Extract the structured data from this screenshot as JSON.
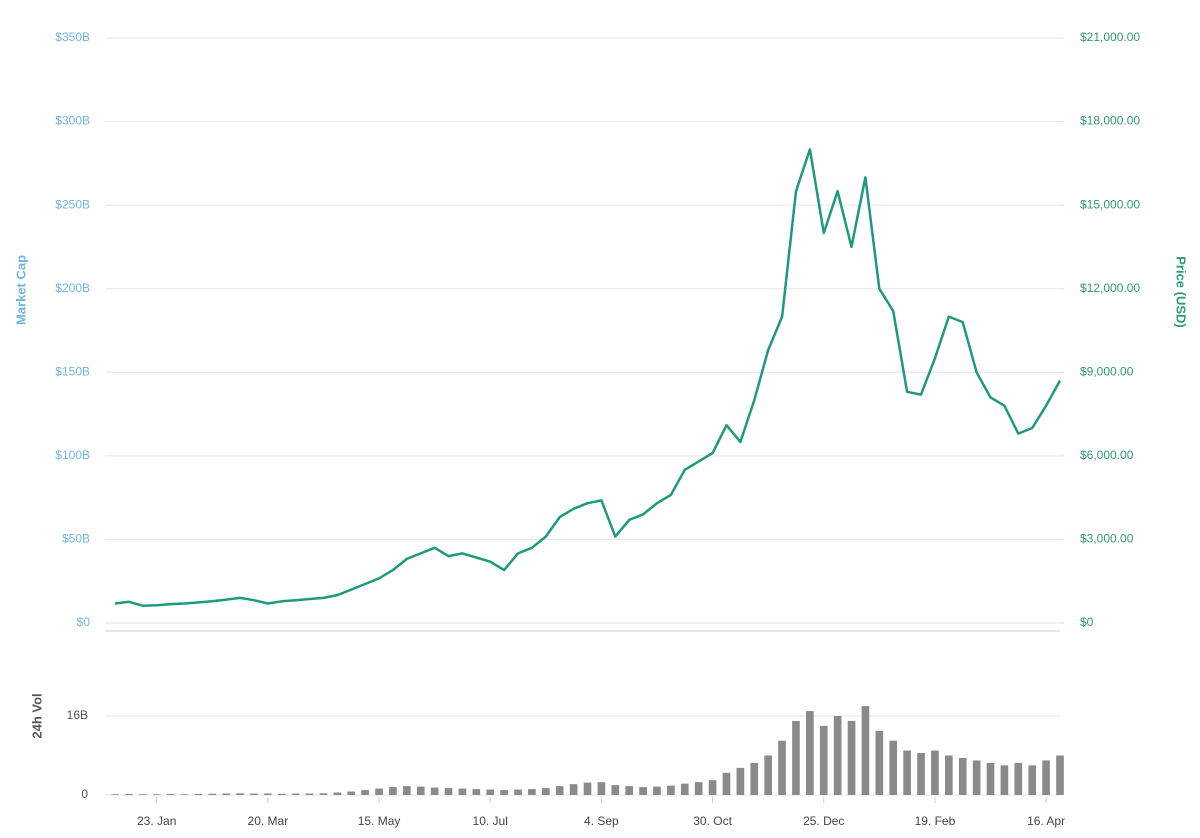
{
  "chart_data": {
    "type": "line",
    "ylabel": "Market Cap",
    "y2label": "Price (USD)",
    "categories": [
      null,
      null,
      null,
      "23. Jan",
      null,
      null,
      null,
      null,
      null,
      null,
      null,
      "20. Mar",
      null,
      null,
      null,
      null,
      null,
      null,
      null,
      "15. May",
      null,
      null,
      null,
      null,
      null,
      null,
      null,
      "10. Jul",
      null,
      null,
      null,
      null,
      null,
      null,
      null,
      "4. Sep",
      null,
      null,
      null,
      null,
      null,
      null,
      null,
      "30. Oct",
      null,
      null,
      null,
      null,
      null,
      null,
      null,
      "25. Dec",
      null,
      null,
      null,
      null,
      null,
      null,
      null,
      "19. Feb",
      null,
      null,
      null,
      null,
      null,
      null,
      null,
      "16. Apr",
      null
    ],
    "ylim": [
      0,
      350000000000
    ],
    "yticks": [
      {
        "value": 0,
        "label": "$0"
      },
      {
        "value": 50000000000,
        "label": "$50B"
      },
      {
        "value": 100000000000,
        "label": "$100B"
      },
      {
        "value": 150000000000,
        "label": "$150B"
      },
      {
        "value": 200000000000,
        "label": "$200B"
      },
      {
        "value": 250000000000,
        "label": "$250B"
      },
      {
        "value": 300000000000,
        "label": "$300B"
      },
      {
        "value": 350000000000,
        "label": "$350B"
      }
    ],
    "y2lim": [
      0,
      21000
    ],
    "y2ticks": [
      {
        "value": 0,
        "label": "$0"
      },
      {
        "value": 3000,
        "label": "$3,000.00"
      },
      {
        "value": 6000,
        "label": "$6,000.00"
      },
      {
        "value": 9000,
        "label": "$9,000.00"
      },
      {
        "value": 12000,
        "label": "$12,000.00"
      },
      {
        "value": 15000,
        "label": "$15,000.00"
      },
      {
        "value": 18000,
        "label": "$18,000.00"
      },
      {
        "value": 21000,
        "label": "$21,000.00"
      }
    ],
    "grid": true,
    "series": [
      {
        "color": "#1d9a7c",
        "axis": "y2",
        "values": [
          700,
          760,
          620,
          640,
          680,
          700,
          740,
          780,
          840,
          900,
          820,
          700,
          780,
          820,
          860,
          900,
          1000,
          1200,
          1400,
          1600,
          1900,
          2300,
          2500,
          2700,
          2400,
          2500,
          2350,
          2200,
          1900,
          2500,
          2700,
          3100,
          3800,
          4100,
          4300,
          4400,
          3100,
          3700,
          3900,
          4300,
          4600,
          5500,
          5800,
          6100,
          7100,
          6500,
          8000,
          9800,
          11000,
          15500,
          17000,
          14000,
          15500,
          13500,
          16000,
          12000,
          11200,
          8300,
          8200,
          9500,
          11000,
          10800,
          9000,
          8100,
          7800,
          6800,
          7000,
          7800,
          8700
        ]
      }
    ],
    "volume": {
      "type": "bar",
      "ylabel": "24h Vol",
      "color": "#8a8a8a",
      "ylim": [
        0,
        32000000000
      ],
      "yticks": [
        0,
        {
          "value": 16000000000,
          "label": "16B"
        }
      ],
      "values": [
        150000000,
        200000000,
        150000000,
        150000000,
        200000000,
        150000000,
        200000000,
        250000000,
        300000000,
        350000000,
        300000000,
        300000000,
        250000000,
        300000000,
        300000000,
        350000000,
        500000000,
        700000000,
        1000000000,
        1300000000,
        1600000000,
        1800000000,
        1700000000,
        1500000000,
        1400000000,
        1300000000,
        1200000000,
        1100000000,
        1000000000,
        1100000000,
        1200000000,
        1400000000,
        1800000000,
        2200000000,
        2500000000,
        2600000000,
        2000000000,
        1800000000,
        1600000000,
        1700000000,
        1900000000,
        2300000000,
        2600000000,
        3000000000,
        4500000000,
        5500000000,
        6500000000,
        8000000000,
        11000000000,
        15000000000,
        17000000000,
        14000000000,
        16000000000,
        15000000000,
        18000000000,
        13000000000,
        11000000000,
        9000000000,
        8500000000,
        9000000000,
        8000000000,
        7500000000,
        7000000000,
        6500000000,
        6000000000,
        6500000000,
        6000000000,
        7000000000,
        8000000000
      ]
    }
  }
}
